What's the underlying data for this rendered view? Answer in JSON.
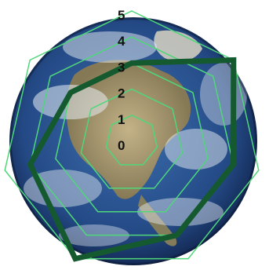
{
  "chart_data": {
    "type": "radar",
    "axes_count": 7,
    "radial_ticks": [
      "0",
      "1",
      "2",
      "3",
      "4",
      "5"
    ],
    "rmin": 0,
    "rmax": 5,
    "grid": true,
    "background": "earth-globe-photo",
    "series": [
      {
        "values": [
          3,
          5,
          4,
          4,
          5,
          4,
          3
        ],
        "color": "#145a2e"
      }
    ],
    "colors": {
      "grid": "#4fd77a",
      "series": "#145a2e",
      "ocean": "#2a4f8f",
      "land": "#b59e72",
      "cloud": "#e8eef4"
    }
  }
}
